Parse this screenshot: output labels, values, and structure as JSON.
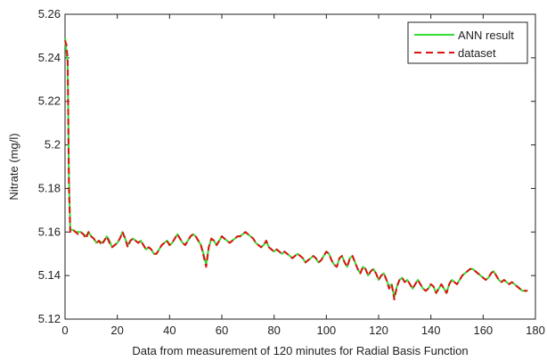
{
  "chart_data": {
    "type": "line",
    "xlabel": "Data from measurement of 120 minutes for Radial Basis Function",
    "ylabel": "Nitrate (mg/l)",
    "xlim": [
      0,
      180
    ],
    "ylim": [
      5.12,
      5.26
    ],
    "xticks": [
      "0",
      "20",
      "40",
      "60",
      "80",
      "100",
      "120",
      "140",
      "160",
      "180"
    ],
    "yticks": [
      "5.12",
      "5.14",
      "5.16",
      "5.18",
      "5.2",
      "5.22",
      "5.24",
      "5.26"
    ],
    "grid": false,
    "legend_position": "top-right",
    "series": [
      {
        "name": "ANN result",
        "color": "#33dd33",
        "style": "solid",
        "x": [
          0,
          0.5,
          1,
          1.5,
          2,
          3,
          4,
          5,
          6,
          7,
          8,
          9,
          10,
          11,
          12,
          13,
          14,
          15,
          16,
          17,
          18,
          19,
          20,
          21,
          22,
          23,
          24,
          25,
          26,
          27,
          28,
          29,
          30,
          31,
          32,
          33,
          34,
          35,
          36,
          37,
          38,
          39,
          40,
          41,
          42,
          43,
          44,
          45,
          46,
          47,
          48,
          49,
          50,
          51,
          52,
          53,
          54,
          55,
          56,
          57,
          58,
          59,
          60,
          61,
          62,
          63,
          64,
          65,
          66,
          67,
          68,
          69,
          70,
          71,
          72,
          73,
          74,
          75,
          76,
          77,
          78,
          79,
          80,
          81,
          82,
          83,
          84,
          85,
          86,
          87,
          88,
          89,
          90,
          91,
          92,
          93,
          94,
          95,
          96,
          97,
          98,
          99,
          100,
          101,
          102,
          103,
          104,
          105,
          106,
          107,
          108,
          109,
          110,
          111,
          112,
          113,
          114,
          115,
          116,
          117,
          118,
          119,
          120,
          121,
          122,
          123,
          124,
          125,
          126,
          127,
          128,
          129,
          130,
          131,
          132,
          133,
          134,
          135,
          136,
          137,
          138,
          139,
          140,
          141,
          142,
          143,
          144,
          145,
          146,
          147,
          148,
          149,
          150,
          151,
          152,
          153,
          154,
          155,
          156,
          157,
          158,
          159,
          160,
          161,
          162,
          163,
          164,
          165,
          166,
          167,
          168,
          169,
          170,
          171,
          172,
          173,
          174,
          175,
          176,
          177
        ],
        "y": [
          5.249,
          5.243,
          5.238,
          5.185,
          5.161,
          5.161,
          5.16,
          5.16,
          5.16,
          5.159,
          5.158,
          5.16,
          5.158,
          5.157,
          5.155,
          5.156,
          5.155,
          5.156,
          5.158,
          5.156,
          5.153,
          5.154,
          5.155,
          5.157,
          5.16,
          5.157,
          5.154,
          5.156,
          5.157,
          5.156,
          5.155,
          5.156,
          5.154,
          5.152,
          5.153,
          5.152,
          5.15,
          5.15,
          5.152,
          5.154,
          5.155,
          5.156,
          5.154,
          5.155,
          5.157,
          5.159,
          5.157,
          5.155,
          5.154,
          5.156,
          5.158,
          5.159,
          5.158,
          5.156,
          5.154,
          5.15,
          5.145,
          5.153,
          5.157,
          5.156,
          5.154,
          5.156,
          5.158,
          5.157,
          5.156,
          5.155,
          5.156,
          5.157,
          5.158,
          5.158,
          5.159,
          5.16,
          5.159,
          5.158,
          5.157,
          5.155,
          5.154,
          5.153,
          5.154,
          5.156,
          5.153,
          5.152,
          5.151,
          5.152,
          5.151,
          5.15,
          5.151,
          5.15,
          5.149,
          5.148,
          5.149,
          5.15,
          5.149,
          5.148,
          5.146,
          5.147,
          5.148,
          5.149,
          5.148,
          5.146,
          5.147,
          5.149,
          5.151,
          5.15,
          5.147,
          5.145,
          5.144,
          5.148,
          5.149,
          5.146,
          5.144,
          5.148,
          5.149,
          5.146,
          5.143,
          5.141,
          5.144,
          5.143,
          5.14,
          5.142,
          5.143,
          5.141,
          5.138,
          5.14,
          5.141,
          5.138,
          5.135,
          5.136,
          5.13,
          5.135,
          5.138,
          5.139,
          5.137,
          5.138,
          5.136,
          5.134,
          5.136,
          5.138,
          5.136,
          5.134,
          5.133,
          5.134,
          5.136,
          5.135,
          5.132,
          5.134,
          5.136,
          5.134,
          5.132,
          5.136,
          5.138,
          5.137,
          5.136,
          5.138,
          5.14,
          5.141,
          5.142,
          5.143,
          5.143,
          5.142,
          5.141,
          5.14,
          5.139,
          5.138,
          5.139,
          5.141,
          5.142,
          5.14,
          5.138,
          5.137,
          5.138,
          5.137,
          5.136,
          5.137,
          5.136,
          5.135,
          5.134,
          5.133,
          5.133,
          5.133
        ]
      },
      {
        "name": "dataset",
        "color": "#dd1111",
        "style": "dashed",
        "x": [
          0,
          0.5,
          1,
          1.5,
          2,
          3,
          4,
          5,
          6,
          7,
          8,
          9,
          10,
          11,
          12,
          13,
          14,
          15,
          16,
          17,
          18,
          19,
          20,
          21,
          22,
          23,
          24,
          25,
          26,
          27,
          28,
          29,
          30,
          31,
          32,
          33,
          34,
          35,
          36,
          37,
          38,
          39,
          40,
          41,
          42,
          43,
          44,
          45,
          46,
          47,
          48,
          49,
          50,
          51,
          52,
          53,
          54,
          55,
          56,
          57,
          58,
          59,
          60,
          61,
          62,
          63,
          64,
          65,
          66,
          67,
          68,
          69,
          70,
          71,
          72,
          73,
          74,
          75,
          76,
          77,
          78,
          79,
          80,
          81,
          82,
          83,
          84,
          85,
          86,
          87,
          88,
          89,
          90,
          91,
          92,
          93,
          94,
          95,
          96,
          97,
          98,
          99,
          100,
          101,
          102,
          103,
          104,
          105,
          106,
          107,
          108,
          109,
          110,
          111,
          112,
          113,
          114,
          115,
          116,
          117,
          118,
          119,
          120,
          121,
          122,
          123,
          124,
          125,
          126,
          127,
          128,
          129,
          130,
          131,
          132,
          133,
          134,
          135,
          136,
          137,
          138,
          139,
          140,
          141,
          142,
          143,
          144,
          145,
          146,
          147,
          148,
          149,
          150,
          151,
          152,
          153,
          154,
          155,
          156,
          157,
          158,
          159,
          160,
          161,
          162,
          163,
          164,
          165,
          166,
          167,
          168,
          169,
          170,
          171,
          172,
          173,
          174,
          175,
          176,
          177
        ],
        "y": [
          5.248,
          5.246,
          5.24,
          5.18,
          5.16,
          5.161,
          5.16,
          5.159,
          5.16,
          5.159,
          5.157,
          5.16,
          5.158,
          5.157,
          5.155,
          5.156,
          5.154,
          5.156,
          5.158,
          5.155,
          5.153,
          5.154,
          5.155,
          5.157,
          5.16,
          5.157,
          5.153,
          5.156,
          5.157,
          5.156,
          5.155,
          5.156,
          5.154,
          5.152,
          5.153,
          5.152,
          5.15,
          5.15,
          5.152,
          5.154,
          5.155,
          5.156,
          5.154,
          5.155,
          5.157,
          5.159,
          5.157,
          5.155,
          5.154,
          5.156,
          5.158,
          5.159,
          5.158,
          5.156,
          5.154,
          5.149,
          5.144,
          5.153,
          5.157,
          5.156,
          5.154,
          5.156,
          5.158,
          5.157,
          5.156,
          5.155,
          5.156,
          5.157,
          5.158,
          5.158,
          5.159,
          5.16,
          5.159,
          5.158,
          5.157,
          5.155,
          5.154,
          5.153,
          5.154,
          5.156,
          5.153,
          5.152,
          5.151,
          5.152,
          5.151,
          5.15,
          5.151,
          5.15,
          5.149,
          5.148,
          5.149,
          5.15,
          5.149,
          5.148,
          5.146,
          5.147,
          5.148,
          5.149,
          5.148,
          5.146,
          5.147,
          5.149,
          5.151,
          5.15,
          5.147,
          5.145,
          5.144,
          5.148,
          5.149,
          5.146,
          5.144,
          5.148,
          5.149,
          5.146,
          5.143,
          5.141,
          5.144,
          5.143,
          5.14,
          5.142,
          5.143,
          5.141,
          5.138,
          5.14,
          5.141,
          5.138,
          5.134,
          5.136,
          5.129,
          5.135,
          5.138,
          5.139,
          5.137,
          5.138,
          5.136,
          5.134,
          5.136,
          5.138,
          5.136,
          5.134,
          5.133,
          5.134,
          5.136,
          5.135,
          5.132,
          5.134,
          5.136,
          5.134,
          5.132,
          5.136,
          5.138,
          5.137,
          5.136,
          5.138,
          5.14,
          5.141,
          5.142,
          5.143,
          5.143,
          5.142,
          5.141,
          5.14,
          5.139,
          5.138,
          5.139,
          5.141,
          5.142,
          5.14,
          5.138,
          5.137,
          5.138,
          5.137,
          5.136,
          5.137,
          5.136,
          5.135,
          5.134,
          5.133,
          5.133,
          5.133
        ]
      }
    ]
  }
}
